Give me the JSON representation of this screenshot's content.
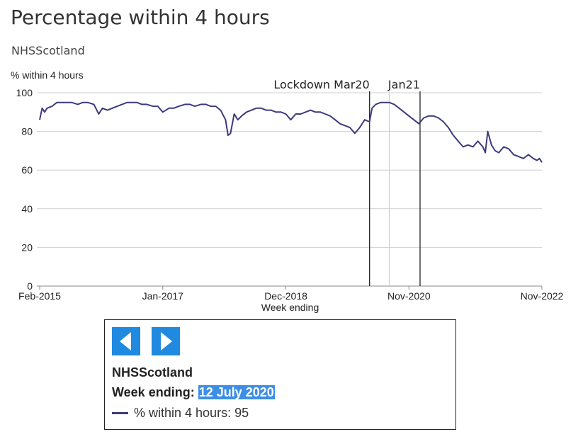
{
  "header": {
    "title": "Percentage within 4 hours",
    "subtitle": "NHSScotland"
  },
  "chart_data": {
    "type": "line",
    "ylabel": "% within 4 hours",
    "xlabel": "Week ending",
    "ylim": [
      0,
      100
    ],
    "yticks": [
      0,
      20,
      40,
      60,
      80,
      100
    ],
    "xlim": [
      "2015-02-01",
      "2022-11-27"
    ],
    "xticks": [
      {
        "date": "2015-02-01",
        "label": "Feb-2015"
      },
      {
        "date": "2017-01-01",
        "label": "Jan-2017"
      },
      {
        "date": "2018-12-02",
        "label": "Dec-2018"
      },
      {
        "date": "2020-11-01",
        "label": "Nov-2020"
      },
      {
        "date": "2022-11-27",
        "label": "Nov-2022"
      }
    ],
    "grid": "horizontal",
    "line_color": "#3d3a7e",
    "annotations": [
      {
        "date": "2020-03-22",
        "label": "Lockdown Mar20"
      },
      {
        "date": "2021-01-03",
        "label": "Jan21"
      }
    ],
    "highlight_date": "2020-07-12",
    "series": [
      {
        "name": "% within 4 hours",
        "points": [
          [
            "2015-02-01",
            86
          ],
          [
            "2015-02-15",
            92
          ],
          [
            "2015-03-01",
            90
          ],
          [
            "2015-03-15",
            92
          ],
          [
            "2015-04-12",
            93
          ],
          [
            "2015-05-10",
            95
          ],
          [
            "2015-06-07",
            95
          ],
          [
            "2015-07-05",
            95
          ],
          [
            "2015-08-02",
            95
          ],
          [
            "2015-09-06",
            94
          ],
          [
            "2015-10-04",
            95
          ],
          [
            "2015-11-01",
            95
          ],
          [
            "2015-12-06",
            94
          ],
          [
            "2016-01-03",
            89
          ],
          [
            "2016-01-24",
            92
          ],
          [
            "2016-02-21",
            91
          ],
          [
            "2016-03-20",
            92
          ],
          [
            "2016-04-17",
            93
          ],
          [
            "2016-05-15",
            94
          ],
          [
            "2016-06-12",
            95
          ],
          [
            "2016-07-10",
            95
          ],
          [
            "2016-08-07",
            95
          ],
          [
            "2016-09-04",
            94
          ],
          [
            "2016-10-02",
            94
          ],
          [
            "2016-11-06",
            93
          ],
          [
            "2016-12-04",
            93
          ],
          [
            "2017-01-01",
            90
          ],
          [
            "2017-02-05",
            92
          ],
          [
            "2017-03-05",
            92
          ],
          [
            "2017-04-02",
            93
          ],
          [
            "2017-05-07",
            94
          ],
          [
            "2017-06-04",
            94
          ],
          [
            "2017-07-02",
            93
          ],
          [
            "2017-08-06",
            94
          ],
          [
            "2017-09-03",
            94
          ],
          [
            "2017-10-01",
            93
          ],
          [
            "2017-10-29",
            93
          ],
          [
            "2017-11-26",
            91
          ],
          [
            "2017-12-24",
            86
          ],
          [
            "2018-01-07",
            78
          ],
          [
            "2018-01-21",
            79
          ],
          [
            "2018-02-11",
            89
          ],
          [
            "2018-03-04",
            86
          ],
          [
            "2018-03-25",
            88
          ],
          [
            "2018-04-22",
            90
          ],
          [
            "2018-05-20",
            91
          ],
          [
            "2018-06-17",
            92
          ],
          [
            "2018-07-15",
            92
          ],
          [
            "2018-08-12",
            91
          ],
          [
            "2018-09-09",
            91
          ],
          [
            "2018-10-07",
            90
          ],
          [
            "2018-11-04",
            90
          ],
          [
            "2018-12-02",
            89
          ],
          [
            "2018-12-30",
            86
          ],
          [
            "2019-01-27",
            89
          ],
          [
            "2019-02-24",
            89
          ],
          [
            "2019-03-24",
            90
          ],
          [
            "2019-04-21",
            91
          ],
          [
            "2019-05-19",
            90
          ],
          [
            "2019-06-16",
            90
          ],
          [
            "2019-07-14",
            89
          ],
          [
            "2019-08-11",
            88
          ],
          [
            "2019-09-08",
            86
          ],
          [
            "2019-10-06",
            84
          ],
          [
            "2019-11-03",
            83
          ],
          [
            "2019-12-01",
            82
          ],
          [
            "2019-12-29",
            79
          ],
          [
            "2020-01-26",
            82
          ],
          [
            "2020-02-23",
            86
          ],
          [
            "2020-03-22",
            85
          ],
          [
            "2020-04-05",
            92
          ],
          [
            "2020-04-26",
            94
          ],
          [
            "2020-05-24",
            95
          ],
          [
            "2020-06-14",
            95
          ],
          [
            "2020-07-12",
            95
          ],
          [
            "2020-08-09",
            94
          ],
          [
            "2020-09-06",
            92
          ],
          [
            "2020-10-04",
            90
          ],
          [
            "2020-11-01",
            88
          ],
          [
            "2020-11-29",
            86
          ],
          [
            "2020-12-27",
            84
          ],
          [
            "2021-01-24",
            87
          ],
          [
            "2021-02-21",
            88
          ],
          [
            "2021-03-21",
            88
          ],
          [
            "2021-04-18",
            87
          ],
          [
            "2021-05-16",
            85
          ],
          [
            "2021-06-13",
            82
          ],
          [
            "2021-07-11",
            78
          ],
          [
            "2021-08-08",
            75
          ],
          [
            "2021-09-05",
            72
          ],
          [
            "2021-10-03",
            73
          ],
          [
            "2021-10-31",
            72
          ],
          [
            "2021-11-28",
            75
          ],
          [
            "2021-12-26",
            72
          ],
          [
            "2022-01-09",
            69
          ],
          [
            "2022-01-23",
            80
          ],
          [
            "2022-02-13",
            73
          ],
          [
            "2022-03-06",
            70
          ],
          [
            "2022-03-27",
            69
          ],
          [
            "2022-04-24",
            72
          ],
          [
            "2022-05-22",
            71
          ],
          [
            "2022-06-19",
            68
          ],
          [
            "2022-07-17",
            67
          ],
          [
            "2022-08-14",
            66
          ],
          [
            "2022-09-11",
            68
          ],
          [
            "2022-10-09",
            66
          ],
          [
            "2022-10-30",
            65
          ],
          [
            "2022-11-13",
            66
          ],
          [
            "2022-11-27",
            64
          ]
        ]
      }
    ]
  },
  "tooltip": {
    "region": "NHSScotland",
    "week_label": "Week ending:",
    "week_value": "12 July 2020",
    "series_label": "% within 4 hours:",
    "series_value": "95"
  }
}
